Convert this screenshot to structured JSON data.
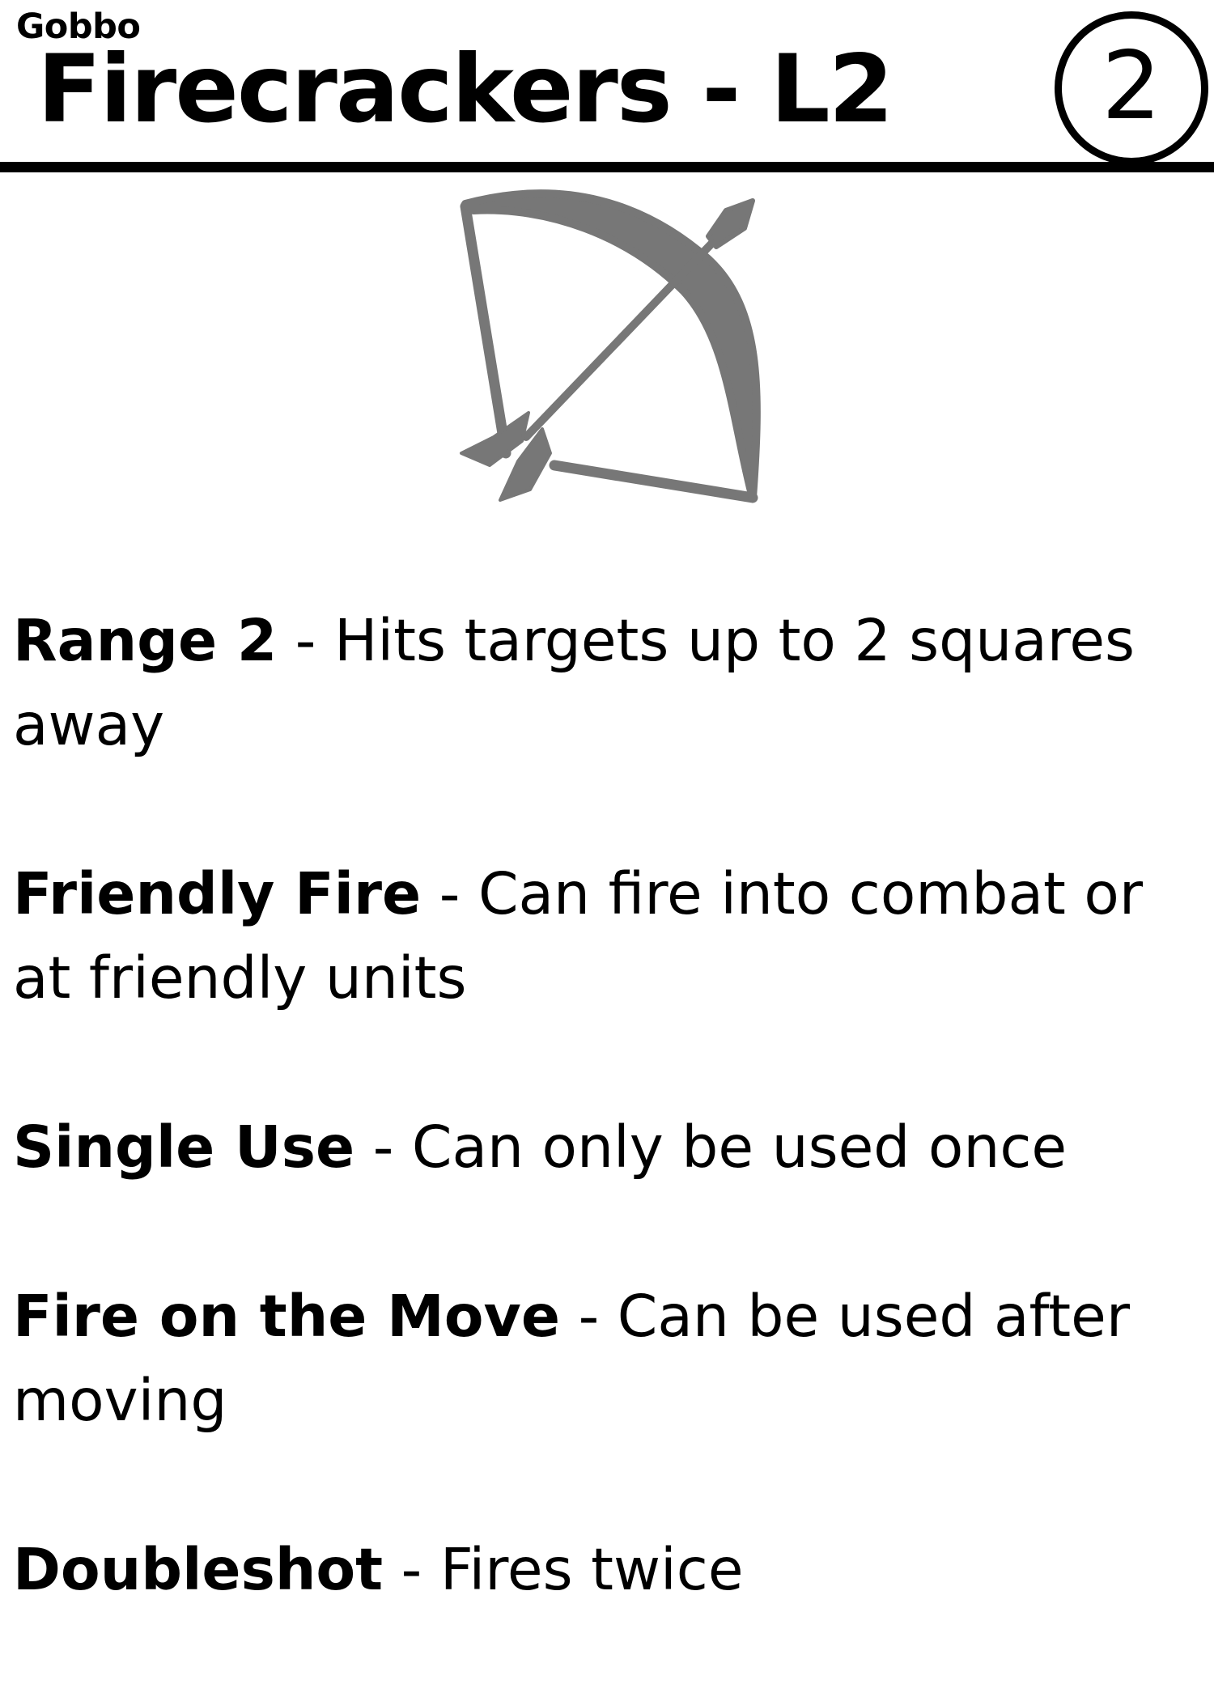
{
  "card": {
    "faction": "Gobbo",
    "title": "Firecrackers - L2",
    "cost": "2",
    "icon": "bow-and-arrow-icon",
    "icon_color": "#777777",
    "abilities": [
      {
        "name": "Range 2",
        "separator": " - ",
        "description": "Hits targets up to 2 squares away"
      },
      {
        "name": "Friendly Fire",
        "separator": " - ",
        "description": "Can fire into combat or at friendly units"
      },
      {
        "name": "Single Use",
        "separator": " - ",
        "description": "Can only be used once"
      },
      {
        "name": "Fire on the Move",
        "separator": " - ",
        "description": "Can be used after moving"
      },
      {
        "name": "Doubleshot",
        "separator": " - ",
        "description": "Fires twice"
      }
    ]
  }
}
